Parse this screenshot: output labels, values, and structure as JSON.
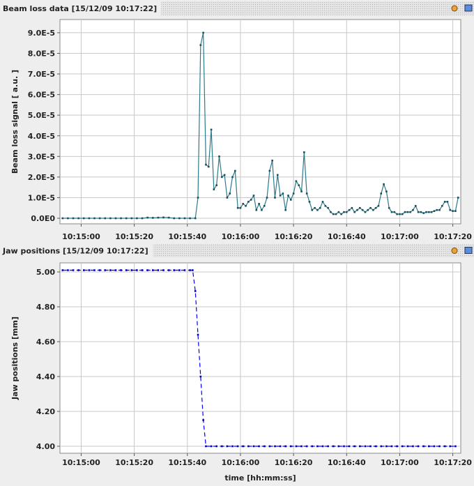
{
  "chart_data": [
    {
      "type": "line",
      "title": "Beam loss data  [15/12/09 10:17:22]",
      "ylabel": "Beam loss signal [ a.u. ]",
      "color": "#2b7a8a",
      "marker_color": "#1b4f5e",
      "dashed": false,
      "grid": true,
      "xlim": [
        "10:14:52",
        "10:17:23"
      ],
      "xticks": [
        "10:15:00",
        "10:15:20",
        "10:15:40",
        "10:16:00",
        "10:16:20",
        "10:16:40",
        "10:17:00",
        "10:17:20"
      ],
      "ylim": [
        -2.7e-06,
        9.64e-05
      ],
      "yticks": [
        {
          "value": 0,
          "label": "0.0E0"
        },
        {
          "value": 1e-05,
          "label": "1.0E-5"
        },
        {
          "value": 2e-05,
          "label": "2.0E-5"
        },
        {
          "value": 3e-05,
          "label": "3.0E-5"
        },
        {
          "value": 4e-05,
          "label": "4.0E-5"
        },
        {
          "value": 5e-05,
          "label": "5.0E-5"
        },
        {
          "value": 6e-05,
          "label": "6.0E-5"
        },
        {
          "value": 7e-05,
          "label": "7.0E-5"
        },
        {
          "value": 8e-05,
          "label": "8.0E-5"
        },
        {
          "value": 9e-05,
          "label": "9.0E-5"
        }
      ],
      "x": [
        "10:14:53",
        "10:14:55",
        "10:14:57",
        "10:14:59",
        "10:15:01",
        "10:15:03",
        "10:15:05",
        "10:15:07",
        "10:15:09",
        "10:15:11",
        "10:15:13",
        "10:15:15",
        "10:15:17",
        "10:15:19",
        "10:15:21",
        "10:15:23",
        "10:15:25",
        "10:15:27",
        "10:15:29",
        "10:15:31",
        "10:15:33",
        "10:15:35",
        "10:15:37",
        "10:15:39",
        "10:15:41",
        "10:15:43",
        "10:15:44",
        "10:15:45",
        "10:15:46",
        "10:15:47",
        "10:15:48",
        "10:15:49",
        "10:15:50",
        "10:15:51",
        "10:15:52",
        "10:15:53",
        "10:15:54",
        "10:15:55",
        "10:15:56",
        "10:15:57",
        "10:15:58",
        "10:15:59",
        "10:16:00",
        "10:16:01",
        "10:16:02",
        "10:16:03",
        "10:16:04",
        "10:16:05",
        "10:16:06",
        "10:16:07",
        "10:16:08",
        "10:16:09",
        "10:16:10",
        "10:16:11",
        "10:16:12",
        "10:16:13",
        "10:16:14",
        "10:16:15",
        "10:16:16",
        "10:16:17",
        "10:16:18",
        "10:16:19",
        "10:16:20",
        "10:16:21",
        "10:16:22",
        "10:16:23",
        "10:16:24",
        "10:16:25",
        "10:16:26",
        "10:16:27",
        "10:16:28",
        "10:16:29",
        "10:16:30",
        "10:16:31",
        "10:16:32",
        "10:16:33",
        "10:16:34",
        "10:16:35",
        "10:16:36",
        "10:16:37",
        "10:16:38",
        "10:16:39",
        "10:16:40",
        "10:16:41",
        "10:16:42",
        "10:16:43",
        "10:16:44",
        "10:16:45",
        "10:16:46",
        "10:16:47",
        "10:16:48",
        "10:16:49",
        "10:16:50",
        "10:16:51",
        "10:16:52",
        "10:16:53",
        "10:16:54",
        "10:16:55",
        "10:16:56",
        "10:16:57",
        "10:16:58",
        "10:16:59",
        "10:17:00",
        "10:17:01",
        "10:17:02",
        "10:17:03",
        "10:17:04",
        "10:17:05",
        "10:17:06",
        "10:17:07",
        "10:17:08",
        "10:17:09",
        "10:17:10",
        "10:17:11",
        "10:17:12",
        "10:17:13",
        "10:17:14",
        "10:17:15",
        "10:17:16",
        "10:17:17",
        "10:17:18",
        "10:17:19",
        "10:17:20",
        "10:17:21",
        "10:17:22"
      ],
      "values": [
        0,
        0,
        0,
        0,
        0,
        0,
        0,
        0,
        0,
        0,
        0,
        0,
        0,
        0,
        0,
        0,
        3e-07,
        2e-07,
        3e-07,
        4e-07,
        3e-07,
        0,
        0,
        0,
        0,
        0,
        1e-05,
        8.4e-05,
        9e-05,
        2.6e-05,
        2.5e-05,
        4.3e-05,
        1.4e-05,
        1.6e-05,
        3e-05,
        2e-05,
        2.1e-05,
        1e-05,
        1.2e-05,
        2e-05,
        2.3e-05,
        5e-06,
        5e-06,
        7e-06,
        6e-06,
        8e-06,
        9e-06,
        1.1e-05,
        4e-06,
        7e-06,
        4e-06,
        6e-06,
        1e-05,
        2.3e-05,
        2.8e-05,
        1e-05,
        2.1e-05,
        1.1e-05,
        1.2e-05,
        4e-06,
        1.1e-05,
        9e-06,
        1.2e-05,
        1.8e-05,
        1.6e-05,
        1.3e-05,
        3.2e-05,
        1.2e-05,
        8e-06,
        4e-06,
        5e-06,
        4e-06,
        5e-06,
        8e-06,
        6e-06,
        5e-06,
        3e-06,
        2e-06,
        2e-06,
        3e-06,
        2e-06,
        3e-06,
        3e-06,
        4e-06,
        5e-06,
        3e-06,
        4e-06,
        5e-06,
        4e-06,
        3e-06,
        4e-06,
        5e-06,
        4e-06,
        5e-06,
        6e-06,
        1.2e-05,
        1.65e-05,
        1.3e-05,
        5e-06,
        3e-06,
        3e-06,
        2e-06,
        2e-06,
        2e-06,
        3e-06,
        3e-06,
        3e-06,
        4e-06,
        6e-06,
        3e-06,
        3e-06,
        2.5e-06,
        3e-06,
        3e-06,
        3e-06,
        3.5e-06,
        4e-06,
        4e-06,
        6e-06,
        8e-06,
        8e-06,
        4e-06,
        3.5e-06,
        3.5e-06,
        1e-05
      ]
    },
    {
      "type": "line",
      "title": "Jaw positions  [15/12/09 10:17:22]",
      "ylabel": "Jaw positions [mm]",
      "xlabel": "time [hh:mm:ss]",
      "color": "#0000ff",
      "marker_color": "#0000cc",
      "dashed": true,
      "grid": true,
      "xlim": [
        "10:14:52",
        "10:17:23"
      ],
      "xticks": [
        "10:15:00",
        "10:15:20",
        "10:15:40",
        "10:16:00",
        "10:16:20",
        "10:16:40",
        "10:17:00",
        "10:17:20"
      ],
      "ylim": [
        3.96,
        5.052
      ],
      "yticks": [
        {
          "value": 4,
          "label": "4.00"
        },
        {
          "value": 4.2,
          "label": "4.20"
        },
        {
          "value": 4.4,
          "label": "4.40"
        },
        {
          "value": 4.6,
          "label": "4.60"
        },
        {
          "value": 4.8,
          "label": "4.80"
        },
        {
          "value": 5,
          "label": "5.00"
        }
      ],
      "x": [
        "10:14:53",
        "10:14:55",
        "10:14:57",
        "10:14:59",
        "10:15:01",
        "10:15:03",
        "10:15:05",
        "10:15:07",
        "10:15:09",
        "10:15:11",
        "10:15:13",
        "10:15:15",
        "10:15:17",
        "10:15:19",
        "10:15:21",
        "10:15:23",
        "10:15:25",
        "10:15:27",
        "10:15:29",
        "10:15:31",
        "10:15:33",
        "10:15:35",
        "10:15:37",
        "10:15:39",
        "10:15:41",
        "10:15:42",
        "10:15:43",
        "10:15:44",
        "10:15:45",
        "10:15:46",
        "10:15:47",
        "10:15:49",
        "10:15:51",
        "10:15:53",
        "10:15:55",
        "10:15:57",
        "10:15:59",
        "10:16:01",
        "10:16:03",
        "10:16:05",
        "10:16:07",
        "10:16:09",
        "10:16:11",
        "10:16:13",
        "10:16:15",
        "10:16:17",
        "10:16:19",
        "10:16:21",
        "10:16:23",
        "10:16:25",
        "10:16:27",
        "10:16:29",
        "10:16:31",
        "10:16:33",
        "10:16:35",
        "10:16:37",
        "10:16:39",
        "10:16:41",
        "10:16:43",
        "10:16:45",
        "10:16:47",
        "10:16:49",
        "10:16:51",
        "10:16:53",
        "10:16:55",
        "10:16:57",
        "10:16:59",
        "10:17:01",
        "10:17:03",
        "10:17:05",
        "10:17:07",
        "10:17:09",
        "10:17:11",
        "10:17:13",
        "10:17:15",
        "10:17:17",
        "10:17:19",
        "10:17:21"
      ],
      "values": [
        5.01,
        5.01,
        5.01,
        5.01,
        5.01,
        5.01,
        5.01,
        5.01,
        5.01,
        5.01,
        5.01,
        5.01,
        5.01,
        5.01,
        5.01,
        5.01,
        5.01,
        5.01,
        5.01,
        5.01,
        5.01,
        5.01,
        5.01,
        5.01,
        5.01,
        5.01,
        4.89,
        4.64,
        4.4,
        4.15,
        4,
        4,
        4,
        4,
        4,
        4,
        4,
        4,
        4,
        4,
        4,
        4,
        4,
        4,
        4,
        4,
        4,
        4,
        4,
        4,
        4,
        4,
        4,
        4,
        4,
        4,
        4,
        4,
        4,
        4,
        4,
        4,
        4,
        4,
        4,
        4,
        4,
        4,
        4,
        4,
        4,
        4,
        4,
        4,
        4,
        4,
        4,
        4
      ]
    }
  ]
}
